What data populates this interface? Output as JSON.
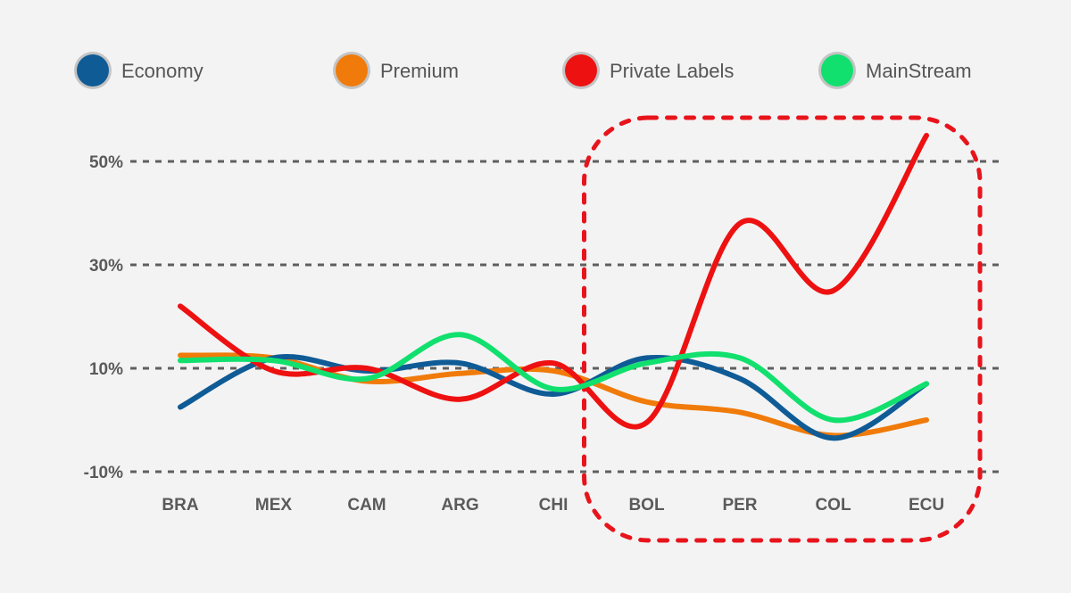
{
  "chart_data": {
    "type": "line",
    "categories": [
      "BRA",
      "MEX",
      "CAM",
      "ARG",
      "CHI",
      "BOL",
      "PER",
      "COL",
      "ECU"
    ],
    "series": [
      {
        "name": "Economy",
        "color": "#0f5b96",
        "values": [
          2.5,
          12,
          9.5,
          11,
          5,
          12,
          8,
          -3.5,
          7
        ]
      },
      {
        "name": "Premium",
        "color": "#f07b0a",
        "values": [
          12.5,
          12,
          7.5,
          9,
          9.5,
          3.5,
          1.5,
          -3,
          0
        ]
      },
      {
        "name": "Private Labels",
        "color": "#ee1111",
        "values": [
          22,
          9.5,
          10,
          4,
          11,
          -0.5,
          38,
          25,
          55
        ]
      },
      {
        "name": "MainStream",
        "color": "#11e06e",
        "values": [
          11.5,
          11.5,
          8,
          16.5,
          6,
          11,
          12,
          0,
          7
        ]
      }
    ],
    "yticks": [
      {
        "label": "50%",
        "value": 50
      },
      {
        "label": "30%",
        "value": 30
      },
      {
        "label": "10%",
        "value": 10
      },
      {
        "label": "-10%",
        "value": -10
      }
    ],
    "ylim": [
      -10,
      50
    ],
    "grid": true,
    "legend_position": "top",
    "highlight": {
      "categories": [
        "BOL",
        "PER",
        "COL",
        "ECU"
      ],
      "color": "#e8141c",
      "style": "dotted rounded box"
    }
  }
}
